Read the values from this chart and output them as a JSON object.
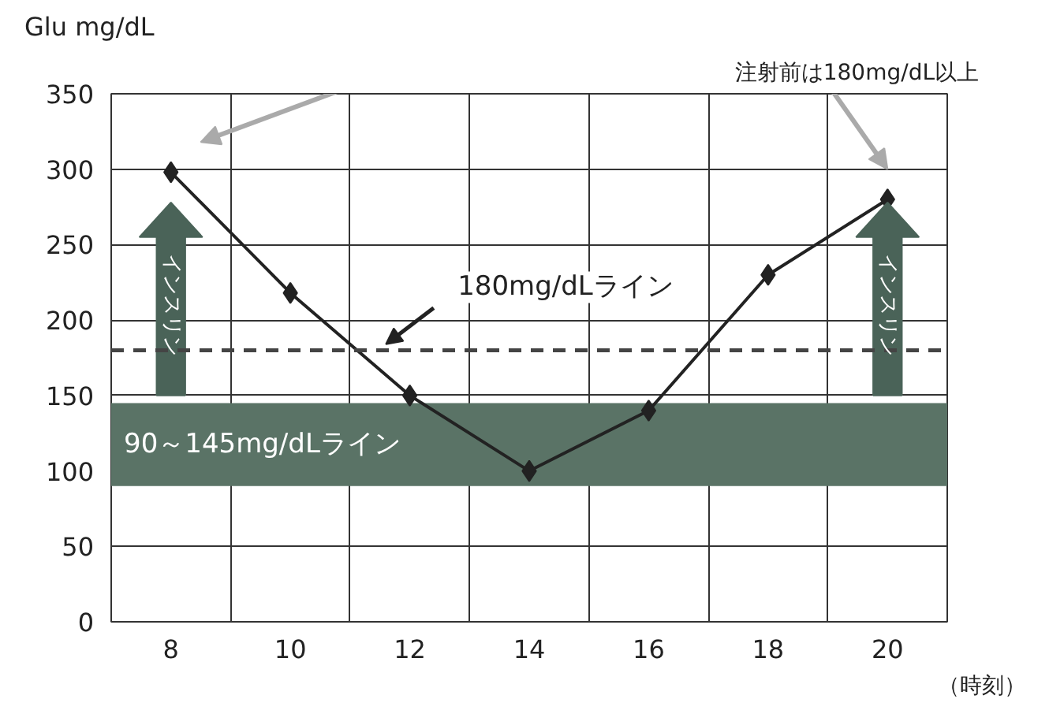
{
  "chart_data": {
    "type": "line",
    "ylabel": "Glu mg/dL",
    "xlabel": "（時刻）",
    "categories": [
      "8",
      "10",
      "12",
      "14",
      "16",
      "18",
      "20"
    ],
    "series": [
      {
        "color": "#222222",
        "values": [
          298,
          218,
          150,
          100,
          140,
          230,
          280
        ]
      }
    ],
    "ylim": [
      0,
      350
    ],
    "yticks": [
      0,
      50,
      100,
      150,
      200,
      250,
      300,
      350
    ],
    "grid": true,
    "marker": "diamond",
    "line_style": "solid",
    "ref_lines": [
      {
        "axis": "y",
        "value": 180,
        "label": "180mg/dLライン",
        "color": "#444444",
        "line_style": "dashed"
      }
    ],
    "bands": [
      {
        "axis": "y",
        "from": 90,
        "to": 145,
        "label": "90～145mg/dLライン",
        "color": "#5a7366"
      }
    ],
    "annotations": [
      "注射前は180mg/dL以上",
      "インスリン",
      "インスリン"
    ]
  }
}
